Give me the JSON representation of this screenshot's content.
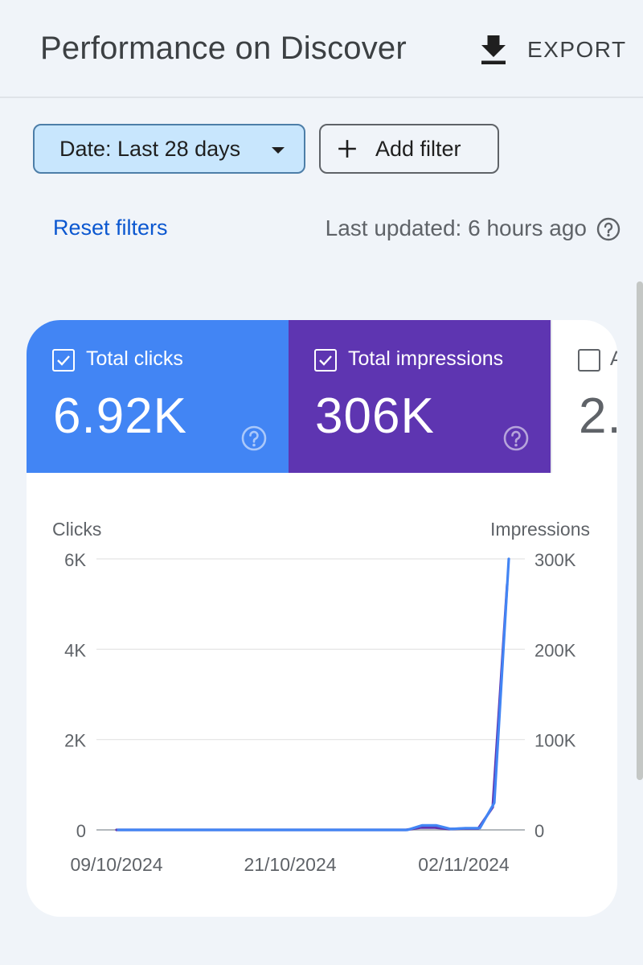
{
  "header": {
    "title": "Performance on Discover",
    "export_label": "EXPORT"
  },
  "filters": {
    "date_chip": "Date: Last 28 days",
    "add_filter": "Add filter",
    "reset": "Reset filters",
    "last_updated": "Last updated: 6 hours ago"
  },
  "metrics": [
    {
      "label": "Total clicks",
      "value": "6.92K",
      "checked": true,
      "color": "#4285f4"
    },
    {
      "label": "Total impressions",
      "value": "306K",
      "checked": true,
      "color": "#5e35b1"
    },
    {
      "label": "A",
      "value": "2.",
      "checked": false
    }
  ],
  "chart_data": {
    "type": "line",
    "left_axis_label": "Clicks",
    "right_axis_label": "Impressions",
    "left_ticks": [
      "0",
      "2K",
      "4K",
      "6K"
    ],
    "right_ticks": [
      "0",
      "100K",
      "200K",
      "300K"
    ],
    "left_ylim": [
      0,
      6000
    ],
    "right_ylim": [
      0,
      300000
    ],
    "x_tick_labels": [
      "09/10/2024",
      "21/10/2024",
      "02/11/2024"
    ],
    "x_tick_dates": [
      "2024-10-09",
      "2024-10-21",
      "2024-11-02"
    ],
    "grid": true,
    "series": [
      {
        "name": "Clicks",
        "axis": "left",
        "color": "#4285f4",
        "points": [
          [
            "2024-10-09",
            0
          ],
          [
            "2024-10-10",
            0
          ],
          [
            "2024-10-11",
            0
          ],
          [
            "2024-10-12",
            0
          ],
          [
            "2024-10-13",
            0
          ],
          [
            "2024-10-14",
            0
          ],
          [
            "2024-10-15",
            0
          ],
          [
            "2024-10-16",
            0
          ],
          [
            "2024-10-17",
            0
          ],
          [
            "2024-10-18",
            0
          ],
          [
            "2024-10-19",
            0
          ],
          [
            "2024-10-20",
            0
          ],
          [
            "2024-10-21",
            0
          ],
          [
            "2024-10-22",
            0
          ],
          [
            "2024-10-23",
            0
          ],
          [
            "2024-10-24",
            0
          ],
          [
            "2024-10-25",
            0
          ],
          [
            "2024-10-26",
            0
          ],
          [
            "2024-10-27",
            0
          ],
          [
            "2024-10-28",
            0
          ],
          [
            "2024-10-29",
            0
          ],
          [
            "2024-10-30",
            100
          ],
          [
            "2024-10-31",
            100
          ],
          [
            "2024-11-01",
            20
          ],
          [
            "2024-11-02",
            40
          ],
          [
            "2024-11-03",
            40
          ],
          [
            "2024-11-04",
            600
          ],
          [
            "2024-11-05",
            6000
          ]
        ]
      },
      {
        "name": "Impressions",
        "axis": "right",
        "color": "#5e35b1",
        "points": [
          [
            "2024-10-09",
            0
          ],
          [
            "2024-10-10",
            0
          ],
          [
            "2024-10-11",
            0
          ],
          [
            "2024-10-12",
            0
          ],
          [
            "2024-10-13",
            0
          ],
          [
            "2024-10-14",
            0
          ],
          [
            "2024-10-15",
            0
          ],
          [
            "2024-10-16",
            0
          ],
          [
            "2024-10-17",
            0
          ],
          [
            "2024-10-18",
            0
          ],
          [
            "2024-10-19",
            0
          ],
          [
            "2024-10-20",
            0
          ],
          [
            "2024-10-21",
            0
          ],
          [
            "2024-10-22",
            0
          ],
          [
            "2024-10-23",
            0
          ],
          [
            "2024-10-24",
            0
          ],
          [
            "2024-10-25",
            0
          ],
          [
            "2024-10-26",
            0
          ],
          [
            "2024-10-27",
            0
          ],
          [
            "2024-10-28",
            0
          ],
          [
            "2024-10-29",
            0
          ],
          [
            "2024-10-30",
            2500
          ],
          [
            "2024-10-31",
            2500
          ],
          [
            "2024-11-01",
            1000
          ],
          [
            "2024-11-02",
            1500
          ],
          [
            "2024-11-03",
            1500
          ],
          [
            "2024-11-04",
            25000
          ],
          [
            "2024-11-05",
            272000
          ]
        ]
      }
    ]
  }
}
